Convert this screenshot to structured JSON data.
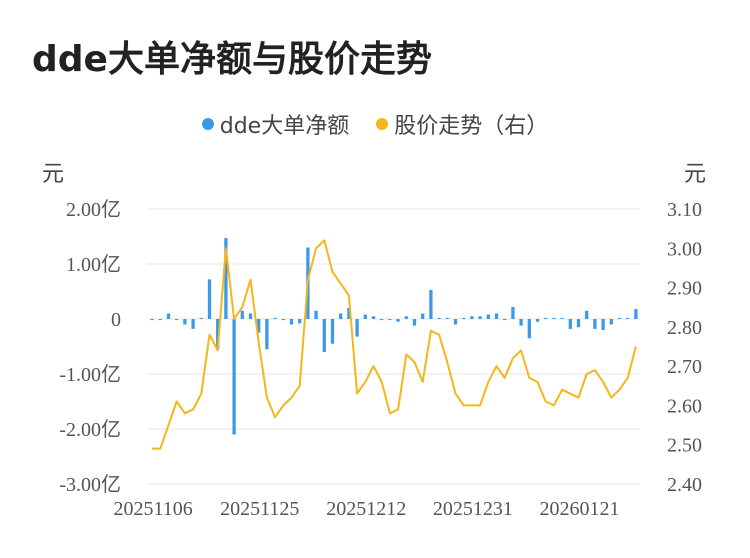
{
  "title": "dde大单净额与股价走势",
  "legend": {
    "series1": "dde大单净额",
    "series2": "股价走势（右）"
  },
  "units": {
    "left": "元",
    "right": "元"
  },
  "colors": {
    "bar": "#3a9ae8",
    "line": "#f5b51b",
    "grid": "#e6e6e6"
  },
  "chart_data": {
    "type": "bar+line",
    "x_tick_labels": [
      "20251106",
      "20251125",
      "20251212",
      "20251231",
      "20260121"
    ],
    "x_tick_indices": [
      0,
      13,
      26,
      39,
      52
    ],
    "left_axis": {
      "ticks": [
        "2.00亿",
        "1.00亿",
        "0",
        "-1.00亿",
        "-2.00亿",
        "-3.00亿"
      ],
      "values": [
        2,
        1,
        0,
        -1,
        -2,
        -3
      ],
      "unit": "亿"
    },
    "right_axis": {
      "ticks": [
        "3.10",
        "3.00",
        "2.90",
        "2.80",
        "2.70",
        "2.60",
        "2.50",
        "2.40"
      ],
      "values": [
        3.1,
        3.0,
        2.9,
        2.8,
        2.7,
        2.6,
        2.5,
        2.4
      ]
    },
    "grid": true,
    "legend_position": "top-center",
    "series": [
      {
        "name": "dde大单净额",
        "type": "bar",
        "axis": "left",
        "values": [
          -0.02,
          -0.02,
          0.1,
          -0.02,
          -0.1,
          -0.18,
          0.02,
          0.72,
          -0.55,
          1.47,
          -2.1,
          0.15,
          0.1,
          -0.25,
          -0.55,
          0.02,
          -0.02,
          -0.1,
          -0.08,
          1.3,
          0.15,
          -0.6,
          -0.45,
          0.1,
          0.2,
          -0.32,
          0.08,
          0.05,
          -0.02,
          -0.02,
          -0.05,
          0.05,
          -0.12,
          0.1,
          0.53,
          0.02,
          0.02,
          -0.1,
          0.02,
          0.05,
          0.05,
          0.08,
          0.1,
          -0.02,
          0.22,
          -0.12,
          -0.35,
          -0.05,
          0.02,
          0.02,
          0.02,
          -0.18,
          -0.15,
          0.15,
          -0.18,
          -0.2,
          -0.1,
          0.02,
          0.02,
          0.18
        ]
      },
      {
        "name": "股价走势（右）",
        "type": "line",
        "axis": "right",
        "values": [
          2.49,
          2.49,
          2.55,
          2.61,
          2.58,
          2.59,
          2.63,
          2.78,
          2.74,
          3.0,
          2.82,
          2.85,
          2.92,
          2.76,
          2.62,
          2.57,
          2.6,
          2.62,
          2.65,
          2.92,
          3.0,
          3.02,
          2.94,
          2.91,
          2.88,
          2.63,
          2.66,
          2.7,
          2.66,
          2.58,
          2.59,
          2.73,
          2.71,
          2.66,
          2.79,
          2.78,
          2.71,
          2.63,
          2.6,
          2.6,
          2.6,
          2.66,
          2.7,
          2.67,
          2.72,
          2.74,
          2.67,
          2.66,
          2.61,
          2.6,
          2.64,
          2.63,
          2.62,
          2.68,
          2.69,
          2.66,
          2.62,
          2.64,
          2.67,
          2.75
        ]
      }
    ]
  }
}
